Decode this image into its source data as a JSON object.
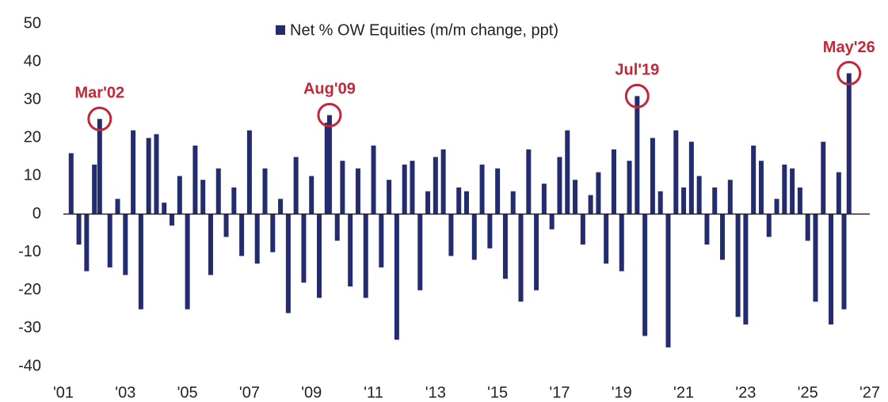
{
  "chart_data": {
    "type": "bar",
    "series": [
      {
        "name": "Net % OW Equities (m/m change, ppt)",
        "color": "#232c6e",
        "x": [
          2001.25,
          2001.5,
          2001.75,
          2002.0,
          2002.17,
          2002.5,
          2002.75,
          2003.0,
          2003.25,
          2003.5,
          2003.75,
          2004.0,
          2004.25,
          2004.5,
          2004.75,
          2005.0,
          2005.25,
          2005.5,
          2005.75,
          2006.0,
          2006.25,
          2006.5,
          2006.75,
          2007.0,
          2007.25,
          2007.5,
          2007.75,
          2008.0,
          2008.25,
          2008.5,
          2008.75,
          2009.0,
          2009.25,
          2009.5,
          2009.58,
          2009.83,
          2010.0,
          2010.25,
          2010.5,
          2010.75,
          2011.0,
          2011.25,
          2011.5,
          2011.75,
          2012.0,
          2012.25,
          2012.5,
          2012.75,
          2013.0,
          2013.25,
          2013.5,
          2013.75,
          2014.0,
          2014.25,
          2014.5,
          2014.75,
          2015.0,
          2015.25,
          2015.5,
          2015.75,
          2016.0,
          2016.25,
          2016.5,
          2016.75,
          2017.0,
          2017.25,
          2017.5,
          2017.75,
          2018.0,
          2018.25,
          2018.5,
          2018.75,
          2019.0,
          2019.25,
          2019.5,
          2019.75,
          2020.0,
          2020.25,
          2020.5,
          2020.75,
          2021.0,
          2021.25,
          2021.5,
          2021.75,
          2022.0,
          2022.25,
          2022.5,
          2022.75,
          2023.0,
          2023.25,
          2023.5,
          2023.75,
          2024.0,
          2024.25,
          2024.5,
          2024.75,
          2025.0,
          2025.25,
          2025.5,
          2025.75,
          2026.0,
          2026.17,
          2026.33
        ],
        "values": [
          16,
          -8,
          -15,
          13,
          25,
          -14,
          4,
          -16,
          22,
          -25,
          20,
          21,
          3,
          -3,
          10,
          -25,
          18,
          9,
          -16,
          12,
          -6,
          7,
          -11,
          22,
          -13,
          12,
          -10,
          4,
          -26,
          15,
          -18,
          10,
          -22,
          24,
          26,
          -7,
          14,
          -19,
          12,
          -22,
          18,
          -14,
          9,
          -33,
          13,
          14,
          -20,
          6,
          15,
          17,
          -11,
          7,
          6,
          -12,
          13,
          -9,
          12,
          -17,
          6,
          -23,
          17,
          -20,
          8,
          -4,
          15,
          22,
          9,
          -8,
          5,
          11,
          -13,
          17,
          -15,
          14,
          31,
          -32,
          20,
          6,
          -35,
          22,
          7,
          19,
          10,
          -8,
          7,
          -12,
          9,
          -27,
          -29,
          18,
          14,
          -6,
          4,
          13,
          12,
          7,
          -7,
          -23,
          19,
          -29,
          11,
          -25,
          37
        ]
      }
    ],
    "annotations": [
      {
        "text": "Mar'02",
        "x": 2002.17,
        "y": 25
      },
      {
        "text": "Aug'09",
        "x": 2009.58,
        "y": 26
      },
      {
        "text": "Jul'19",
        "x": 2019.5,
        "y": 31
      },
      {
        "text": "May'26",
        "x": 2026.33,
        "y": 37
      }
    ],
    "annotation_color": "#c0283a",
    "xlim": [
      2001,
      2027
    ],
    "xticks": [
      {
        "value": 2001,
        "label": "'01"
      },
      {
        "value": 2003,
        "label": "'03"
      },
      {
        "value": 2005,
        "label": "'05"
      },
      {
        "value": 2007,
        "label": "'07"
      },
      {
        "value": 2009,
        "label": "'09"
      },
      {
        "value": 2011,
        "label": "'11"
      },
      {
        "value": 2013,
        "label": "'13"
      },
      {
        "value": 2015,
        "label": "'15"
      },
      {
        "value": 2017,
        "label": "'17"
      },
      {
        "value": 2019,
        "label": "'19"
      },
      {
        "value": 2021,
        "label": "'21"
      },
      {
        "value": 2023,
        "label": "'23"
      },
      {
        "value": 2025,
        "label": "'25"
      },
      {
        "value": 2027,
        "label": "'27"
      }
    ],
    "ylim": [
      -40,
      50
    ],
    "yticks": [
      -40,
      -30,
      -20,
      -10,
      0,
      10,
      20,
      30,
      40,
      50
    ],
    "grid": false
  }
}
